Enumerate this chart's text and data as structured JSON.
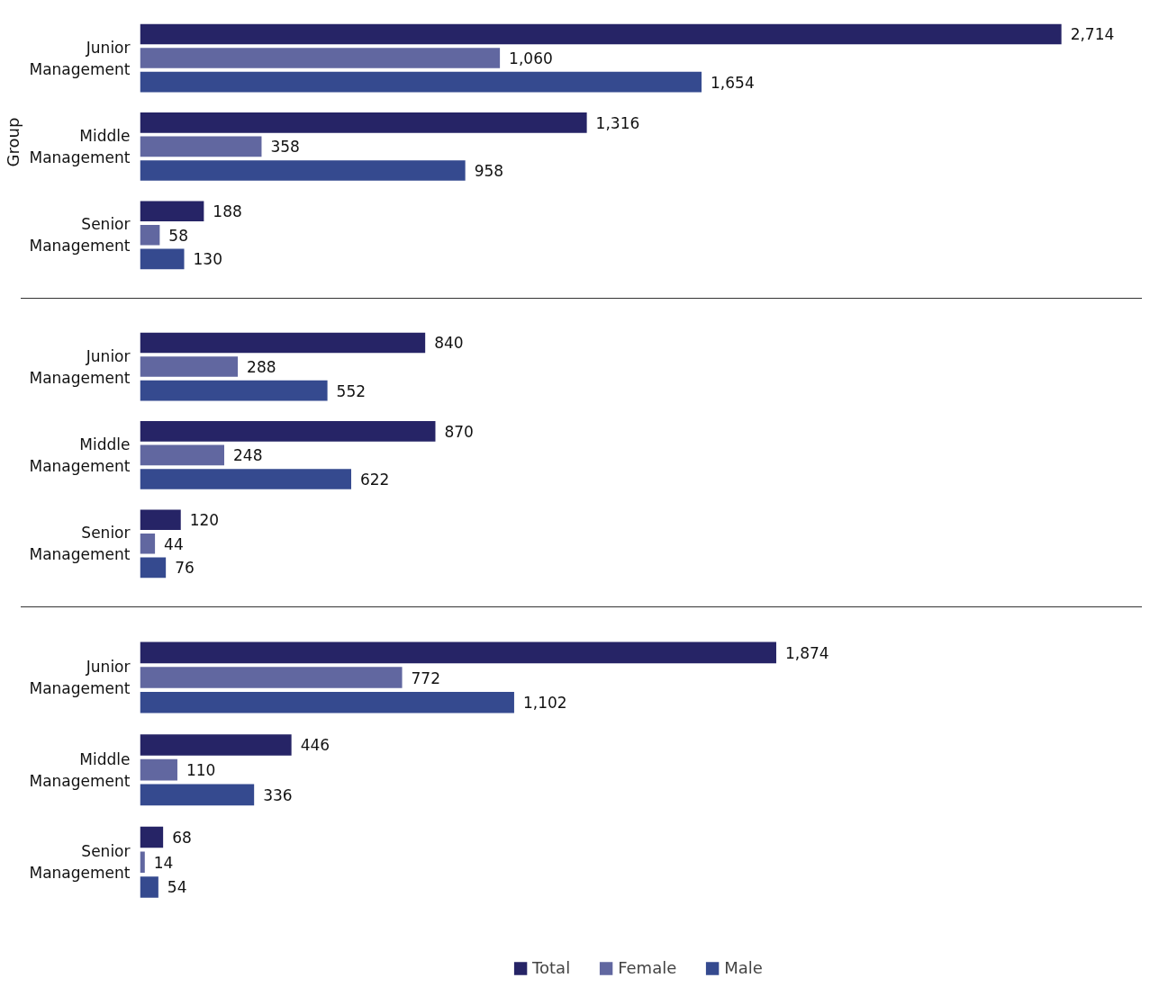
{
  "chart_data": [
    {
      "type": "bar",
      "orientation": "horizontal",
      "ylabel": "Group",
      "categories": [
        "Junior Management",
        "Middle Management",
        "Senior Management"
      ],
      "legend": false,
      "grid": false,
      "tick_labels": "y",
      "series": [
        {
          "color": "#262466",
          "values": [
            2714,
            1316,
            188
          ],
          "value_labels": [
            "2,714",
            "1,316",
            "188"
          ]
        },
        {
          "color": "#6167a0",
          "values": [
            1060,
            358,
            58
          ],
          "value_labels": [
            "1,060",
            "358",
            "58"
          ]
        },
        {
          "color": "#354a8f",
          "values": [
            1654,
            958,
            130
          ],
          "value_labels": [
            "1,654",
            "958",
            "130"
          ]
        }
      ]
    },
    {
      "type": "bar",
      "orientation": "horizontal",
      "categories": [
        "Junior Management",
        "Middle Management",
        "Senior Management"
      ],
      "legend": false,
      "grid": false,
      "tick_labels": "y",
      "series": [
        {
          "color": "#262466",
          "values": [
            840,
            870,
            120
          ],
          "value_labels": [
            "840",
            "870",
            "120"
          ]
        },
        {
          "color": "#6167a0",
          "values": [
            288,
            248,
            44
          ],
          "value_labels": [
            "288",
            "248",
            "44"
          ]
        },
        {
          "color": "#354a8f",
          "values": [
            552,
            622,
            76
          ],
          "value_labels": [
            "552",
            "622",
            "76"
          ]
        }
      ]
    },
    {
      "type": "bar",
      "orientation": "horizontal",
      "categories": [
        "Junior Management",
        "Middle Management",
        "Senior Management"
      ],
      "legend": "bottom",
      "grid": false,
      "tick_labels": "y",
      "series": [
        {
          "name": "Total",
          "color": "#262466",
          "values": [
            1874,
            446,
            68
          ],
          "value_labels": [
            "1,874",
            "446",
            "68"
          ]
        },
        {
          "name": "Female",
          "color": "#6167a0",
          "values": [
            772,
            110,
            14
          ],
          "value_labels": [
            "772",
            "110",
            "14"
          ]
        },
        {
          "name": "Male",
          "color": "#354a8f",
          "values": [
            1102,
            336,
            54
          ],
          "value_labels": [
            "1,102",
            "336",
            "54"
          ]
        }
      ]
    }
  ]
}
